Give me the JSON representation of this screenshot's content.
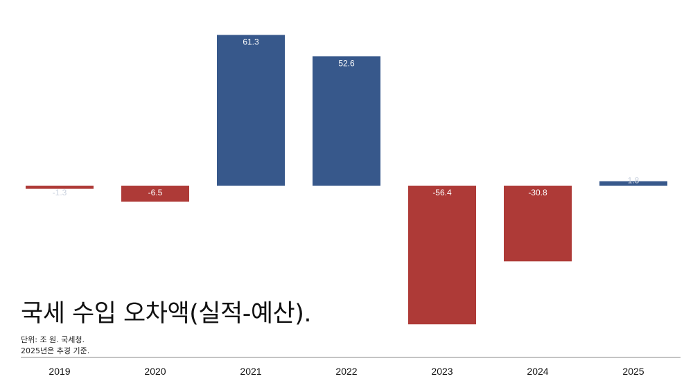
{
  "chart_data": {
    "type": "bar",
    "title": "국세 수입 오차액(실적-예산).",
    "notes": [
      "단위: 조 원. 국세청.",
      "2025년은 추경 기준."
    ],
    "categories": [
      "2019",
      "2020",
      "2021",
      "2022",
      "2023",
      "2024",
      "2025"
    ],
    "values": [
      -1.3,
      -6.5,
      61.3,
      52.6,
      -56.4,
      -30.8,
      1.8
    ],
    "data_labels": [
      "-1.3",
      "-6.5",
      "61.3",
      "52.6",
      "-56.4",
      "-30.8",
      "1.8"
    ],
    "xlabel": "",
    "ylabel": "",
    "ylim": [
      -56.4,
      61.3
    ],
    "grid": false,
    "colors": {
      "positive": "#37588b",
      "negative": "#ae3a37",
      "axis": "#888888"
    }
  }
}
